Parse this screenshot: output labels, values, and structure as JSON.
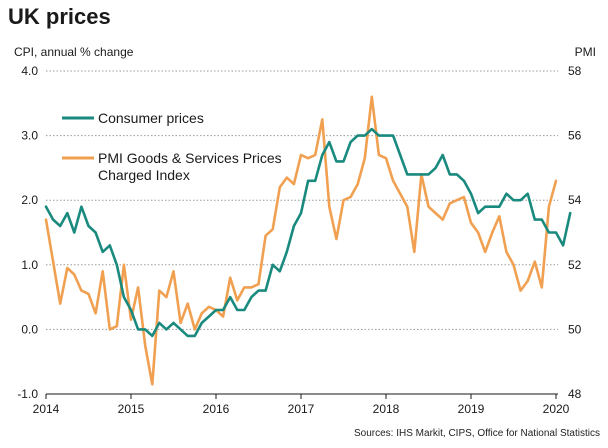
{
  "title": "UK prices",
  "source": "Sources: IHS Markit, CIPS, Office for National Statistics",
  "chart_data": {
    "type": "line",
    "left_axis_label": "CPI, annual % change",
    "right_axis_label": "PMI",
    "left_ylim": [
      -1.0,
      4.0
    ],
    "left_ticks": [
      "-1.0",
      "0.0",
      "1.0",
      "2.0",
      "3.0",
      "4.0"
    ],
    "right_ylim": [
      48,
      58
    ],
    "right_ticks": [
      "48",
      "50",
      "52",
      "54",
      "56",
      "58"
    ],
    "x_ticks": [
      "2014",
      "2015",
      "2016",
      "2017",
      "2018",
      "2019",
      "2020"
    ],
    "grid": "horizontal",
    "legend": "top-left",
    "series": [
      {
        "name": "Consumer prices",
        "axis": "left",
        "color": "#1a8a7f",
        "values": [
          1.9,
          1.7,
          1.6,
          1.8,
          1.5,
          1.9,
          1.6,
          1.5,
          1.2,
          1.3,
          1.0,
          0.5,
          0.3,
          0.0,
          0.0,
          -0.1,
          0.1,
          0.0,
          0.1,
          0.0,
          -0.1,
          -0.1,
          0.1,
          0.2,
          0.3,
          0.3,
          0.5,
          0.3,
          0.3,
          0.5,
          0.6,
          0.6,
          1.0,
          0.9,
          1.2,
          1.6,
          1.8,
          2.3,
          2.3,
          2.7,
          2.9,
          2.6,
          2.6,
          2.9,
          3.0,
          3.0,
          3.1,
          3.0,
          3.0,
          3.0,
          2.7,
          2.4,
          2.4,
          2.4,
          2.4,
          2.5,
          2.7,
          2.4,
          2.4,
          2.3,
          2.1,
          1.8,
          1.9,
          1.9,
          1.9,
          2.1,
          2.0,
          2.0,
          2.1,
          1.7,
          1.7,
          1.5,
          1.5,
          1.3,
          1.8
        ]
      },
      {
        "name": "PMI Goods & Services Prices Charged Index",
        "axis": "right",
        "color": "#f0a050",
        "values": [
          53.4,
          52.1,
          50.8,
          51.9,
          51.7,
          51.2,
          51.1,
          50.5,
          51.8,
          50.0,
          50.1,
          52.0,
          50.3,
          51.3,
          49.5,
          48.3,
          51.2,
          51.0,
          51.8,
          50.2,
          50.8,
          50.0,
          50.5,
          50.7,
          50.6,
          50.4,
          51.6,
          50.9,
          51.3,
          51.3,
          51.4,
          52.9,
          53.1,
          54.4,
          54.7,
          54.5,
          55.4,
          55.3,
          55.4,
          56.5,
          53.8,
          52.8,
          54.0,
          54.1,
          54.5,
          55.3,
          57.2,
          55.4,
          55.3,
          54.6,
          54.2,
          53.8,
          52.4,
          54.8,
          53.8,
          53.6,
          53.4,
          53.9,
          54.0,
          54.1,
          53.3,
          53.0,
          52.4,
          53.0,
          53.5,
          52.4,
          52.0,
          51.2,
          51.5,
          52.1,
          51.3,
          53.8,
          54.6
        ]
      }
    ]
  }
}
